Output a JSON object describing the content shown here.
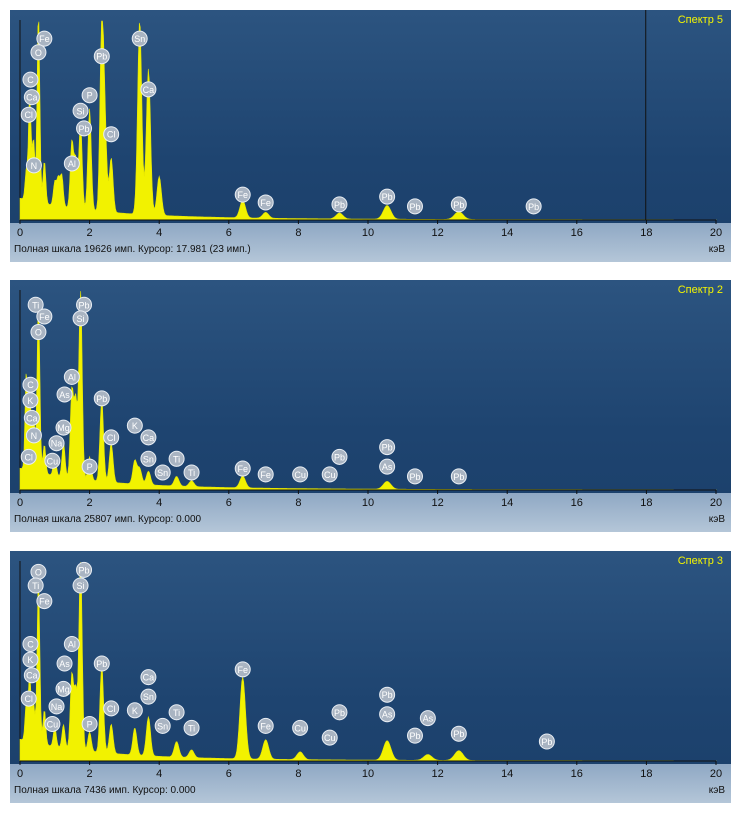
{
  "chart_data": [
    {
      "type": "line",
      "title": "Спектр 5",
      "status": "Полная шкала 19626 имп. Курсор: 17.981  (23 имп.)",
      "unit": "кэВ",
      "xlim": [
        0,
        20
      ],
      "xticks": [
        "0",
        "2",
        "4",
        "6",
        "8",
        "10",
        "12",
        "14",
        "16",
        "18",
        "20"
      ],
      "cursor": 17.981,
      "peaks": [
        [
          0.18,
          0.15
        ],
        [
          0.28,
          0.55
        ],
        [
          0.39,
          0.32
        ],
        [
          0.53,
          0.98
        ],
        [
          0.7,
          0.22
        ],
        [
          1.0,
          0.12
        ],
        [
          1.1,
          0.14
        ],
        [
          1.2,
          0.16
        ],
        [
          1.49,
          0.34
        ],
        [
          1.6,
          0.25
        ],
        [
          1.74,
          0.45
        ],
        [
          2.0,
          0.52
        ],
        [
          2.35,
          0.95
        ],
        [
          2.44,
          0.42
        ],
        [
          2.62,
          0.28
        ],
        [
          3.44,
          1.0
        ],
        [
          3.69,
          0.75
        ],
        [
          4.0,
          0.2
        ],
        [
          6.4,
          0.09
        ],
        [
          7.06,
          0.03
        ],
        [
          9.18,
          0.03
        ],
        [
          10.55,
          0.07
        ],
        [
          12.61,
          0.04
        ]
      ],
      "labels": [
        {
          "t": "Fe",
          "x": 0.7,
          "y": 0.93
        },
        {
          "t": "O",
          "x": 0.53,
          "y": 0.86
        },
        {
          "t": "C",
          "x": 0.3,
          "y": 0.72
        },
        {
          "t": "Ca",
          "x": 0.34,
          "y": 0.63
        },
        {
          "t": "Cl",
          "x": 0.25,
          "y": 0.54
        },
        {
          "t": "N",
          "x": 0.4,
          "y": 0.28
        },
        {
          "t": "Sn",
          "x": 3.44,
          "y": 0.93
        },
        {
          "t": "Pb",
          "x": 2.35,
          "y": 0.84
        },
        {
          "t": "Ca",
          "x": 3.69,
          "y": 0.67
        },
        {
          "t": "P",
          "x": 2.0,
          "y": 0.64
        },
        {
          "t": "Si",
          "x": 1.74,
          "y": 0.56
        },
        {
          "t": "Pb",
          "x": 1.84,
          "y": 0.47
        },
        {
          "t": "Cl",
          "x": 2.62,
          "y": 0.44
        },
        {
          "t": "Al",
          "x": 1.49,
          "y": 0.29
        },
        {
          "t": "Fe",
          "x": 6.4,
          "y": 0.13
        },
        {
          "t": "Fe",
          "x": 7.06,
          "y": 0.09
        },
        {
          "t": "Pb",
          "x": 9.18,
          "y": 0.08
        },
        {
          "t": "Pb",
          "x": 10.55,
          "y": 0.12
        },
        {
          "t": "Pb",
          "x": 11.35,
          "y": 0.07
        },
        {
          "t": "Pb",
          "x": 12.61,
          "y": 0.08
        },
        {
          "t": "Pb",
          "x": 14.76,
          "y": 0.07
        }
      ]
    },
    {
      "type": "line",
      "title": "Спектр 2",
      "status": "Полная шкала 25807 имп. Курсор: 0.000",
      "unit": "кэВ",
      "xlim": [
        0,
        20
      ],
      "xticks": [
        "0",
        "2",
        "4",
        "6",
        "8",
        "10",
        "12",
        "14",
        "16",
        "18",
        "20"
      ],
      "peaks": [
        [
          0.18,
          0.5
        ],
        [
          0.28,
          0.4
        ],
        [
          0.39,
          0.3
        ],
        [
          0.53,
          0.9
        ],
        [
          0.7,
          0.15
        ],
        [
          1.0,
          0.1
        ],
        [
          1.25,
          0.18
        ],
        [
          1.49,
          0.45
        ],
        [
          1.6,
          0.4
        ],
        [
          1.74,
          1.0
        ],
        [
          2.0,
          0.12
        ],
        [
          2.35,
          0.42
        ],
        [
          2.62,
          0.2
        ],
        [
          3.3,
          0.12
        ],
        [
          3.44,
          0.08
        ],
        [
          3.69,
          0.07
        ],
        [
          4.5,
          0.05
        ],
        [
          4.93,
          0.03
        ],
        [
          6.4,
          0.06
        ],
        [
          10.55,
          0.04
        ]
      ],
      "labels": [
        {
          "t": "Ti",
          "x": 0.45,
          "y": 0.95
        },
        {
          "t": "Fe",
          "x": 0.7,
          "y": 0.89
        },
        {
          "t": "O",
          "x": 0.53,
          "y": 0.81
        },
        {
          "t": "Pb",
          "x": 1.84,
          "y": 0.95
        },
        {
          "t": "Si",
          "x": 1.74,
          "y": 0.88
        },
        {
          "t": "C",
          "x": 0.3,
          "y": 0.54
        },
        {
          "t": "K",
          "x": 0.3,
          "y": 0.46
        },
        {
          "t": "Ca",
          "x": 0.34,
          "y": 0.37
        },
        {
          "t": "N",
          "x": 0.4,
          "y": 0.28
        },
        {
          "t": "Cl",
          "x": 0.25,
          "y": 0.17
        },
        {
          "t": "Al",
          "x": 1.49,
          "y": 0.58
        },
        {
          "t": "As",
          "x": 1.28,
          "y": 0.49
        },
        {
          "t": "Mg",
          "x": 1.25,
          "y": 0.32
        },
        {
          "t": "Na",
          "x": 1.05,
          "y": 0.24
        },
        {
          "t": "Cu",
          "x": 0.93,
          "y": 0.15
        },
        {
          "t": "P",
          "x": 2.0,
          "y": 0.12
        },
        {
          "t": "Pb",
          "x": 2.35,
          "y": 0.47
        },
        {
          "t": "Cl",
          "x": 2.62,
          "y": 0.27
        },
        {
          "t": "K",
          "x": 3.3,
          "y": 0.33
        },
        {
          "t": "Ca",
          "x": 3.69,
          "y": 0.27
        },
        {
          "t": "Sn",
          "x": 3.69,
          "y": 0.16
        },
        {
          "t": "Sn",
          "x": 4.1,
          "y": 0.09
        },
        {
          "t": "Ti",
          "x": 4.5,
          "y": 0.16
        },
        {
          "t": "Ti",
          "x": 4.93,
          "y": 0.09
        },
        {
          "t": "Fe",
          "x": 6.4,
          "y": 0.11
        },
        {
          "t": "Fe",
          "x": 7.06,
          "y": 0.08
        },
        {
          "t": "Cu",
          "x": 8.05,
          "y": 0.08
        },
        {
          "t": "Pb",
          "x": 9.18,
          "y": 0.17
        },
        {
          "t": "Cu",
          "x": 8.9,
          "y": 0.08
        },
        {
          "t": "Pb",
          "x": 10.55,
          "y": 0.22
        },
        {
          "t": "As",
          "x": 10.55,
          "y": 0.12
        },
        {
          "t": "Pb",
          "x": 11.35,
          "y": 0.07
        },
        {
          "t": "Pb",
          "x": 12.61,
          "y": 0.07
        }
      ]
    },
    {
      "type": "line",
      "title": "Спектр 3",
      "status": "Полная шкала 7436 имп. Курсор: 0.000",
      "unit": "кэВ",
      "xlim": [
        0,
        20
      ],
      "xticks": [
        "0",
        "2",
        "4",
        "6",
        "8",
        "10",
        "12",
        "14",
        "16",
        "18",
        "20"
      ],
      "peaks": [
        [
          0.18,
          0.2
        ],
        [
          0.28,
          0.35
        ],
        [
          0.39,
          0.2
        ],
        [
          0.53,
          0.85
        ],
        [
          0.7,
          0.18
        ],
        [
          1.0,
          0.1
        ],
        [
          1.25,
          0.12
        ],
        [
          1.49,
          0.38
        ],
        [
          1.6,
          0.3
        ],
        [
          1.74,
          1.0
        ],
        [
          2.0,
          0.1
        ],
        [
          2.35,
          0.45
        ],
        [
          2.62,
          0.15
        ],
        [
          3.3,
          0.14
        ],
        [
          3.69,
          0.2
        ],
        [
          4.5,
          0.08
        ],
        [
          4.93,
          0.04
        ],
        [
          6.4,
          0.42
        ],
        [
          7.06,
          0.1
        ],
        [
          8.05,
          0.04
        ],
        [
          10.55,
          0.1
        ],
        [
          11.72,
          0.03
        ],
        [
          12.61,
          0.05
        ]
      ],
      "labels": [
        {
          "t": "O",
          "x": 0.53,
          "y": 0.97
        },
        {
          "t": "Ti",
          "x": 0.45,
          "y": 0.9
        },
        {
          "t": "Fe",
          "x": 0.7,
          "y": 0.82
        },
        {
          "t": "Pb",
          "x": 1.84,
          "y": 0.98
        },
        {
          "t": "Si",
          "x": 1.74,
          "y": 0.9
        },
        {
          "t": "C",
          "x": 0.3,
          "y": 0.6
        },
        {
          "t": "K",
          "x": 0.3,
          "y": 0.52
        },
        {
          "t": "Ca",
          "x": 0.34,
          "y": 0.44
        },
        {
          "t": "Cl",
          "x": 0.25,
          "y": 0.32
        },
        {
          "t": "Al",
          "x": 1.49,
          "y": 0.6
        },
        {
          "t": "As",
          "x": 1.28,
          "y": 0.5
        },
        {
          "t": "Mg",
          "x": 1.25,
          "y": 0.37
        },
        {
          "t": "Na",
          "x": 1.05,
          "y": 0.28
        },
        {
          "t": "Cu",
          "x": 0.93,
          "y": 0.19
        },
        {
          "t": "P",
          "x": 2.0,
          "y": 0.19
        },
        {
          "t": "Pb",
          "x": 2.35,
          "y": 0.5
        },
        {
          "t": "Cl",
          "x": 2.62,
          "y": 0.27
        },
        {
          "t": "Ca",
          "x": 3.69,
          "y": 0.43
        },
        {
          "t": "Sn",
          "x": 3.69,
          "y": 0.33
        },
        {
          "t": "K",
          "x": 3.3,
          "y": 0.26
        },
        {
          "t": "Sn",
          "x": 4.1,
          "y": 0.18
        },
        {
          "t": "Ti",
          "x": 4.5,
          "y": 0.25
        },
        {
          "t": "Ti",
          "x": 4.93,
          "y": 0.17
        },
        {
          "t": "Fe",
          "x": 6.4,
          "y": 0.47
        },
        {
          "t": "Fe",
          "x": 7.06,
          "y": 0.18
        },
        {
          "t": "Cu",
          "x": 8.05,
          "y": 0.17
        },
        {
          "t": "Pb",
          "x": 9.18,
          "y": 0.25
        },
        {
          "t": "Cu",
          "x": 8.9,
          "y": 0.12
        },
        {
          "t": "Pb",
          "x": 10.55,
          "y": 0.34
        },
        {
          "t": "As",
          "x": 10.55,
          "y": 0.24
        },
        {
          "t": "As",
          "x": 11.72,
          "y": 0.22
        },
        {
          "t": "Pb",
          "x": 11.35,
          "y": 0.13
        },
        {
          "t": "Pb",
          "x": 12.61,
          "y": 0.14
        },
        {
          "t": "Pb",
          "x": 15.14,
          "y": 0.1
        }
      ]
    }
  ]
}
